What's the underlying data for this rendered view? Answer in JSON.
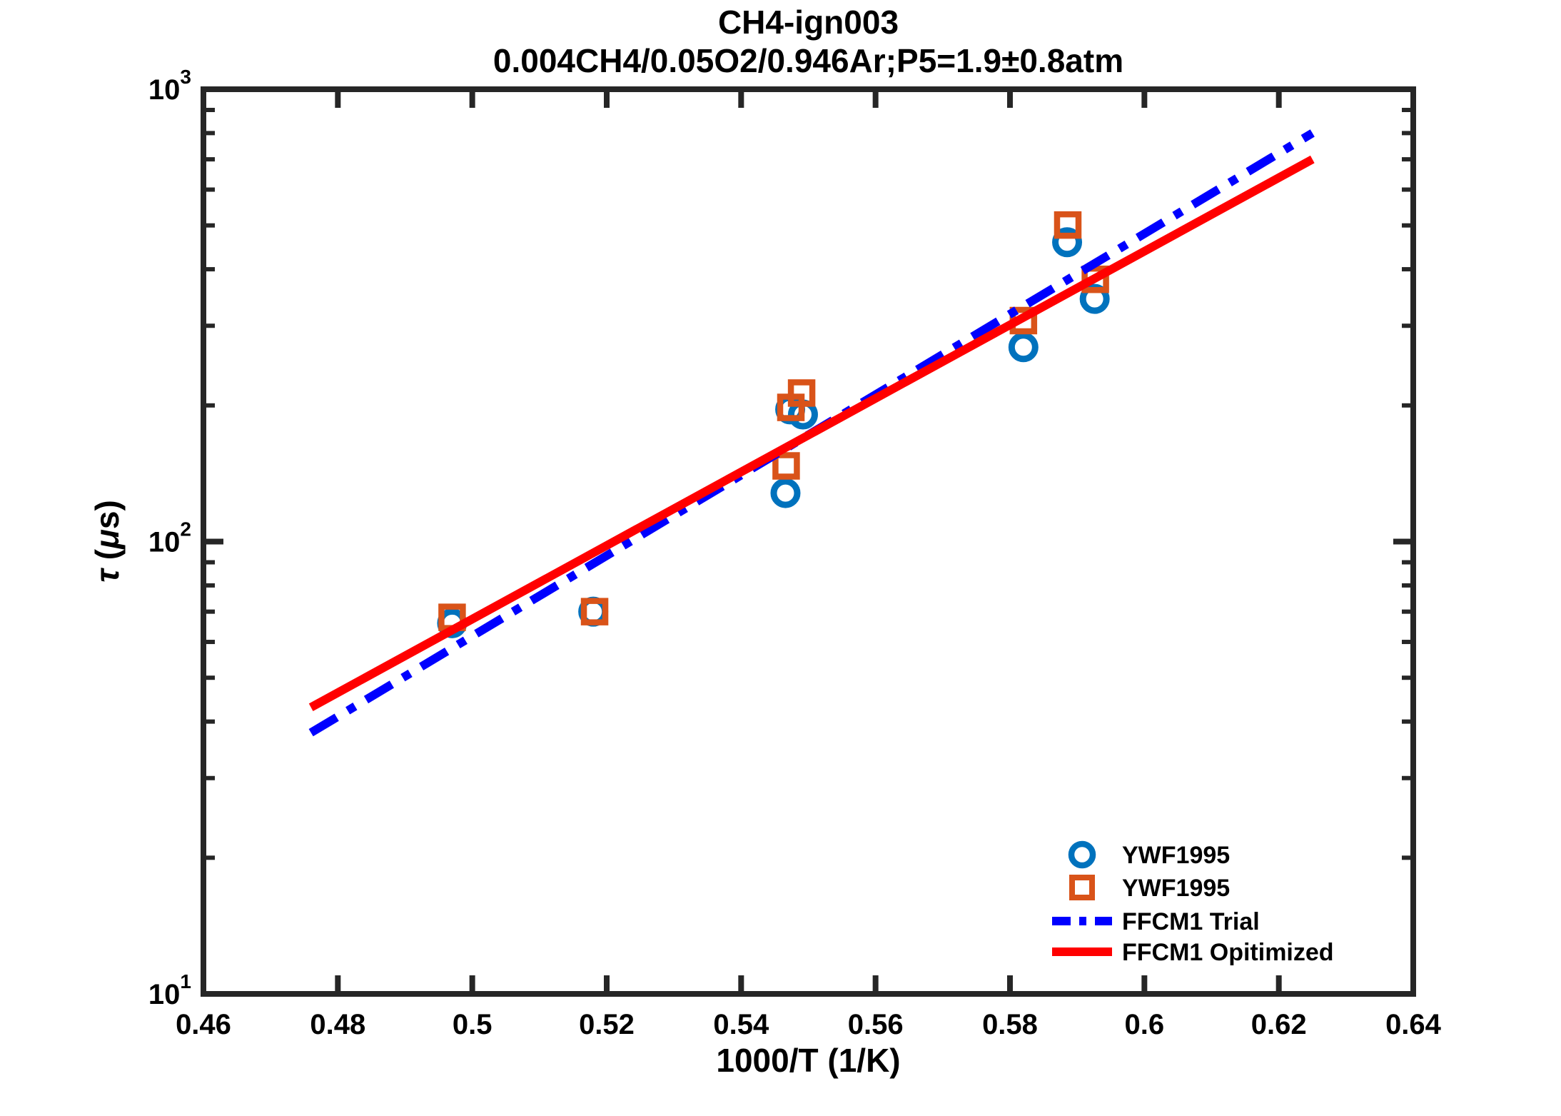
{
  "title": "CH4-ign003",
  "subtitle": "0.004CH4/0.05O2/0.946Ar;P5=1.9±0.8atm",
  "chart_data": {
    "type": "scatter",
    "title": "CH4-ign003",
    "subtitle": "0.004CH4/0.05O2/0.946Ar;P5=1.9±0.8atm",
    "xlabel": "1000/T (1/K)",
    "ylabel": "τ (μs)",
    "ylabel_parts": {
      "tau": "τ",
      "open": " (",
      "mu": "μ",
      "close": "s)"
    },
    "xlim": [
      0.46,
      0.64
    ],
    "ylim": [
      10,
      1000
    ],
    "y_scale": "log",
    "grid": false,
    "x_ticks": [
      {
        "value": 0.46,
        "label": "0.46"
      },
      {
        "value": 0.48,
        "label": "0.48"
      },
      {
        "value": 0.5,
        "label": "0.5"
      },
      {
        "value": 0.52,
        "label": "0.52"
      },
      {
        "value": 0.54,
        "label": "0.54"
      },
      {
        "value": 0.56,
        "label": "0.56"
      },
      {
        "value": 0.58,
        "label": "0.58"
      },
      {
        "value": 0.6,
        "label": "0.6"
      },
      {
        "value": 0.62,
        "label": "0.62"
      },
      {
        "value": 0.64,
        "label": "0.64"
      }
    ],
    "y_major_ticks": [
      {
        "value": 10,
        "base": "10",
        "exp": "1"
      },
      {
        "value": 100,
        "base": "10",
        "exp": "2"
      },
      {
        "value": 1000,
        "base": "10",
        "exp": "3"
      }
    ],
    "y_minor_ticks": [
      20,
      30,
      40,
      50,
      60,
      70,
      80,
      90,
      200,
      300,
      400,
      500,
      600,
      700,
      800,
      900
    ],
    "legend_position": "lower-right-inside, no box",
    "series": [
      {
        "name": "YWF1995",
        "kind": "scatter",
        "marker": "circle",
        "color": "#0072BD",
        "points": [
          [
            0.497,
            66
          ],
          [
            0.518,
            70
          ],
          [
            0.5466,
            128
          ],
          [
            0.5473,
            196
          ],
          [
            0.5492,
            191
          ],
          [
            0.582,
            269
          ],
          [
            0.5885,
            459
          ],
          [
            0.5926,
            344
          ]
        ]
      },
      {
        "name": "YWF1995",
        "kind": "scatter",
        "marker": "square",
        "color": "#D95319",
        "points": [
          [
            0.497,
            68
          ],
          [
            0.5182,
            70
          ],
          [
            0.5467,
            147
          ],
          [
            0.5474,
            198
          ],
          [
            0.549,
            213
          ],
          [
            0.582,
            308
          ],
          [
            0.5886,
            501
          ],
          [
            0.5927,
            380
          ]
        ]
      },
      {
        "name": "FFCM1 Trial",
        "kind": "line",
        "style": "dash-dot",
        "color": "#0000FF",
        "points": [
          [
            0.476,
            37.8
          ],
          [
            0.625,
            800
          ]
        ]
      },
      {
        "name": "FFCM1 Opitimized",
        "kind": "line",
        "style": "solid",
        "color": "#FF0000",
        "points": [
          [
            0.476,
            43
          ],
          [
            0.625,
            700
          ]
        ]
      }
    ],
    "axis_color": "#262626"
  }
}
